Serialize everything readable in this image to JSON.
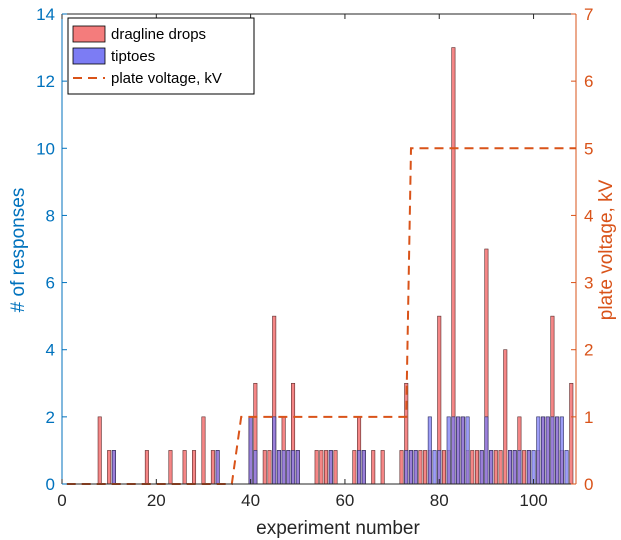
{
  "chart_data": {
    "type": "bar",
    "xlabel": "experiment number",
    "ylabel_left": "# of responses",
    "ylabel_right": "plate voltage, kV",
    "xlim": [
      0,
      109
    ],
    "ylim_left": [
      0,
      14
    ],
    "ylim_right": [
      0,
      7
    ],
    "x_ticks": [
      "0",
      "20",
      "40",
      "60",
      "80",
      "100"
    ],
    "y_ticks_left": [
      "0",
      "2",
      "4",
      "6",
      "8",
      "10",
      "12",
      "14"
    ],
    "y_ticks_right": [
      "0",
      "1",
      "2",
      "3",
      "4",
      "5",
      "6",
      "7"
    ],
    "grid": false,
    "legend_position": "top-left",
    "legend": {
      "dragline": "dragline drops",
      "tiptoes": "tiptoes",
      "voltage": "plate voltage, kV"
    },
    "colors": {
      "dragline": "#F47C7C",
      "tiptoes": "#7C7CF4",
      "voltage": "#D95319",
      "left_axis": "#0072BD",
      "right_axis": "#D95319"
    },
    "series": [
      {
        "name": "dragline drops",
        "x": [
          8,
          10,
          11,
          18,
          23,
          26,
          28,
          30,
          32,
          33,
          40,
          41,
          43,
          44,
          45,
          46,
          47,
          48,
          49,
          50,
          54,
          55,
          56,
          57,
          58,
          62,
          63,
          64,
          66,
          68,
          72,
          73,
          74,
          75,
          76,
          77,
          78,
          80,
          81,
          82,
          83,
          84,
          85,
          86,
          87,
          88,
          89,
          90,
          91,
          92,
          93,
          94,
          95,
          96,
          97,
          98,
          99,
          101,
          102,
          103,
          104,
          105,
          106,
          108
        ],
        "values": [
          2,
          1,
          1,
          1,
          1,
          1,
          1,
          2,
          1,
          1,
          2,
          3,
          1,
          1,
          5,
          1,
          2,
          1,
          3,
          1,
          1,
          1,
          1,
          1,
          1,
          1,
          2,
          1,
          1,
          1,
          1,
          3,
          1,
          1,
          1,
          1,
          1,
          5,
          1,
          1,
          13,
          2,
          2,
          1,
          1,
          1,
          1,
          7,
          1,
          1,
          1,
          4,
          1,
          1,
          2,
          1,
          1,
          1,
          2,
          2,
          5,
          2,
          1,
          3
        ]
      },
      {
        "name": "tiptoes",
        "x": [
          11,
          33,
          40,
          41,
          45,
          46,
          47,
          48,
          49,
          50,
          57,
          63,
          64,
          73,
          74,
          75,
          78,
          79,
          80,
          82,
          83,
          84,
          85,
          86,
          89,
          90,
          91,
          95,
          96,
          97,
          99,
          100,
          101,
          102,
          103,
          104,
          105,
          106,
          107
        ],
        "values": [
          1,
          1,
          2,
          1,
          2,
          1,
          1,
          1,
          1,
          1,
          1,
          1,
          1,
          1,
          1,
          1,
          2,
          1,
          1,
          2,
          2,
          2,
          2,
          2,
          1,
          2,
          1,
          1,
          1,
          1,
          1,
          1,
          2,
          2,
          2,
          2,
          2,
          2,
          1
        ]
      },
      {
        "name": "plate voltage, kV",
        "style": "dashed",
        "x": [
          1,
          36,
          38,
          73,
          74,
          109
        ],
        "values": [
          0,
          0,
          1,
          1,
          5,
          5
        ]
      }
    ]
  }
}
